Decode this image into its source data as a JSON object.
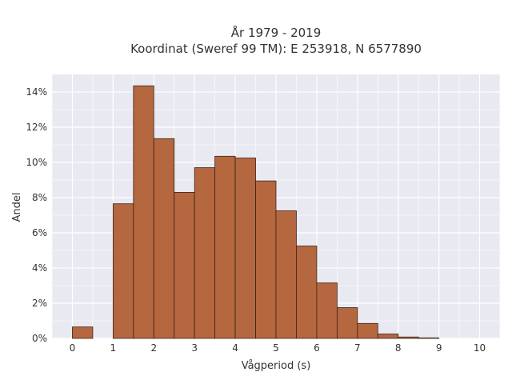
{
  "chart_data": {
    "type": "bar",
    "title_line1": "År 1979 - 2019",
    "title_line2": "Koordinat (Sweref 99 TM): E 253918, N 6577890",
    "xlabel": "Vågperiod (s)",
    "ylabel": "Andel",
    "xlim": [
      -0.5,
      10.5
    ],
    "ylim": [
      0,
      15
    ],
    "x_ticks": [
      0,
      1,
      2,
      3,
      4,
      5,
      6,
      7,
      8,
      9,
      10
    ],
    "y_ticks": [
      0,
      2,
      4,
      6,
      8,
      10,
      12,
      14
    ],
    "y_tick_suffix": "%",
    "bin_width": 0.5,
    "bins": [
      {
        "start": 0.0,
        "value": 0.65
      },
      {
        "start": 0.5,
        "value": 0.0
      },
      {
        "start": 1.0,
        "value": 7.65
      },
      {
        "start": 1.5,
        "value": 14.35
      },
      {
        "start": 2.0,
        "value": 11.35
      },
      {
        "start": 2.5,
        "value": 8.3
      },
      {
        "start": 3.0,
        "value": 9.7
      },
      {
        "start": 3.5,
        "value": 10.35
      },
      {
        "start": 4.0,
        "value": 10.25
      },
      {
        "start": 4.5,
        "value": 8.95
      },
      {
        "start": 5.0,
        "value": 7.25
      },
      {
        "start": 5.5,
        "value": 5.25
      },
      {
        "start": 6.0,
        "value": 3.15
      },
      {
        "start": 6.5,
        "value": 1.75
      },
      {
        "start": 7.0,
        "value": 0.85
      },
      {
        "start": 7.5,
        "value": 0.25
      },
      {
        "start": 8.0,
        "value": 0.08
      },
      {
        "start": 8.5,
        "value": 0.03
      },
      {
        "start": 9.0,
        "value": 0.0
      },
      {
        "start": 9.5,
        "value": 0.0
      }
    ],
    "grid": true,
    "colors": {
      "bar_fill": "#b5673f",
      "bar_stroke": "#3a2418",
      "plot_bg": "#e9e9f1",
      "grid": "#ffffff"
    }
  }
}
